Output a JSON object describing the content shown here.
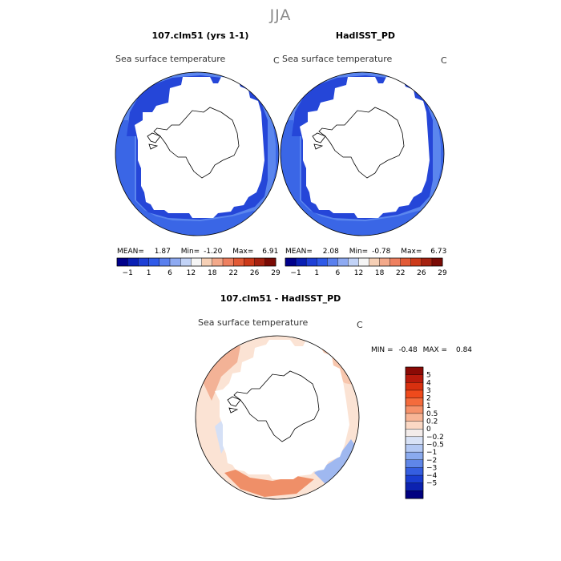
{
  "season": "JJA",
  "panels": [
    {
      "title": "107.clm51 (yrs 1-1)",
      "field_title": "Sea surface temperature",
      "units": "C",
      "stats": {
        "mean_label": "MEAN=",
        "mean": "1.87",
        "min_label": "Min=",
        "min": "-1.20",
        "max_label": "Max=",
        "max": "6.91"
      }
    },
    {
      "title": "HadISST_PD",
      "field_title": "Sea surface temperature",
      "units": "C",
      "stats": {
        "mean_label": "MEAN=",
        "mean": "2.08",
        "min_label": "Min=",
        "min": "-0.78",
        "max_label": "Max=",
        "max": "6.73"
      }
    }
  ],
  "abs_colorbar": {
    "labels": [
      "-1",
      "1",
      "6",
      "12",
      "18",
      "22",
      "26",
      "29"
    ],
    "colors": [
      "#00008b",
      "#0a1fb4",
      "#1e3fd6",
      "#2f5ae8",
      "#5a80ee",
      "#8eaaf2",
      "#c2d3f7",
      "#f5f5f5",
      "#f6d0b6",
      "#f3a98a",
      "#ee8060",
      "#e25a36",
      "#cc3a1a",
      "#a52210",
      "#7a0b05"
    ]
  },
  "diff_panel": {
    "title": "107.clm51 - HadISST_PD",
    "field_title": "Sea surface temperature",
    "units": "C",
    "stats": {
      "min_label": "MIN =",
      "min": "-0.48",
      "max_label": "MAX =",
      "max": "0.84"
    }
  },
  "diff_colorbar": {
    "labels": [
      "5",
      "4",
      "3",
      "2",
      "1",
      "0.5",
      "0.2",
      "0",
      "-0.2",
      "-0.5",
      "-1",
      "-2",
      "-3",
      "-4",
      "-5"
    ],
    "colors": [
      "#8b0a05",
      "#b81a0c",
      "#d8300f",
      "#ef4a1c",
      "#f46b3c",
      "#f6916a",
      "#f8b596",
      "#fbd8c4",
      "#f3ecea",
      "#d8e2f6",
      "#b3c8f3",
      "#8aaaee",
      "#5f86e8",
      "#355ee0",
      "#1a3dd0",
      "#0c22b0",
      "#000080"
    ]
  },
  "chart_data": {
    "type": "heatmap",
    "title": "JJA",
    "projection": "south polar stereographic",
    "panels": [
      {
        "name": "107.clm51 (yrs 1-1)",
        "variable": "Sea surface temperature",
        "units": "C",
        "mean": 1.87,
        "min": -1.2,
        "max": 6.91
      },
      {
        "name": "HadISST_PD",
        "variable": "Sea surface temperature",
        "units": "C",
        "mean": 2.08,
        "min": -0.78,
        "max": 6.73
      },
      {
        "name": "107.clm51 - HadISST_PD",
        "variable": "Sea surface temperature",
        "units": "C",
        "min": -0.48,
        "max": 0.84
      }
    ],
    "abs_levels": [
      -1,
      1,
      6,
      12,
      18,
      22,
      26,
      29
    ],
    "diff_levels": [
      -5,
      -4,
      -3,
      -2,
      -1,
      -0.5,
      -0.2,
      0,
      0.2,
      0.5,
      1,
      2,
      3,
      4,
      5
    ]
  }
}
